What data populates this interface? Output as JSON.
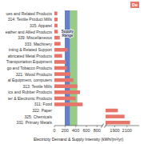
{
  "chart_data": [
    {
      "type": "bar",
      "orientation": "horizontal",
      "categories": [
        "ues and Related Products",
        "314: Textile Product Mills",
        "315: Apparel",
        "eather and Allied Products",
        "339: Miscellaneous",
        "333: Machinery",
        "inting & Related Support",
        "abricated Metal Products",
        "Transportation Equipment",
        "go and Tobacco Products",
        "321: Wood Products",
        "al Equipment, computers",
        "313: Textile Mills",
        "ics and Rubber Products",
        "ter & Electronic Products",
        "311: Food",
        "322: Paper",
        "325: Chemicals",
        "331: Primary Metals"
      ],
      "values": [
        55,
        60,
        58,
        65,
        100,
        115,
        250,
        145,
        215,
        235,
        300,
        355,
        430,
        480,
        400,
        530,
        null,
        null,
        null
      ],
      "color": "#E8756A",
      "xlim": [
        0,
        900
      ],
      "xticks": [
        0,
        200,
        400,
        600,
        800
      ],
      "xlabel": "Electricity Demand & Supply Intensity (kWh/(m²/yr)",
      "grid": false,
      "bands": [
        {
          "min": 195,
          "max": 295,
          "color": "#3F5FBF",
          "label": "Supply\nRange"
        },
        {
          "min": 295,
          "max": 430,
          "color": "#7DBF6A"
        }
      ]
    },
    {
      "type": "bar",
      "orientation": "horizontal",
      "categories": [
        null,
        null,
        null,
        null,
        null,
        null,
        null,
        null,
        null,
        null,
        null,
        null,
        null,
        null,
        null,
        null,
        null,
        null,
        null
      ],
      "series": [
        {
          "name": "De",
          "color": "#E8756A",
          "values": [
            null,
            null,
            null,
            null,
            null,
            null,
            null,
            null,
            null,
            null,
            null,
            null,
            null,
            null,
            null,
            null,
            1950,
            2060,
            2150
          ]
        }
      ],
      "xlim": [
        1750,
        2300
      ],
      "xticks": [
        1900,
        2100
      ],
      "tick_labels": "x",
      "legend": "upper right",
      "grid": false
    }
  ]
}
